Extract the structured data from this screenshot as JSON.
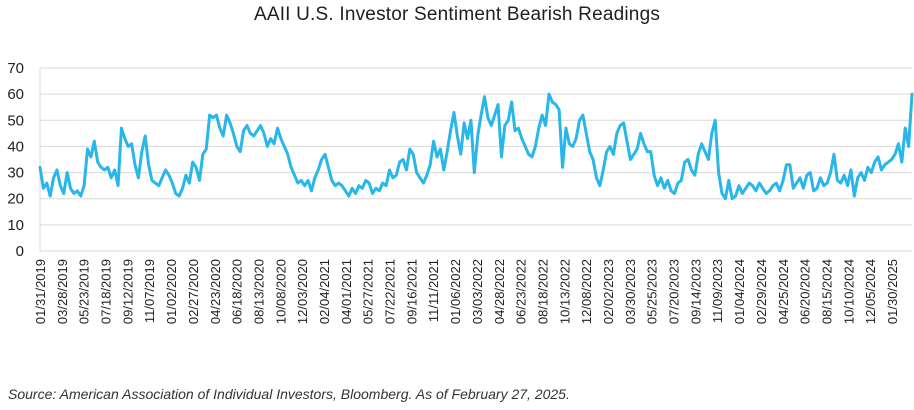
{
  "chart_data": {
    "type": "line",
    "title": "AAII U.S. Investor Sentiment Bearish Readings",
    "xlabel": "",
    "ylabel": "",
    "ylim": [
      0,
      70
    ],
    "yticks": [
      0,
      10,
      20,
      30,
      40,
      50,
      60,
      70
    ],
    "grid": "horizontal",
    "legend": "none",
    "line_color": "#29B6E8",
    "x_tick_labels": [
      "01/31/2019",
      "03/28/2019",
      "05/23/2019",
      "07/18/2019",
      "09/12/2019",
      "11/07/2019",
      "01/02/2020",
      "02/27/2020",
      "04/23/2020",
      "06/18/2020",
      "08/13/2020",
      "10/08/2020",
      "12/03/2020",
      "02/04/2021",
      "04/01/2021",
      "05/27/2021",
      "07/22/2021",
      "09/16/2021",
      "11/11/2021",
      "01/06/2022",
      "03/03/2022",
      "04/28/2022",
      "06/23/2022",
      "08/18/2022",
      "10/13/2022",
      "12/08/2022",
      "02/02/2023",
      "03/30/2023",
      "05/25/2023",
      "07/20/2023",
      "09/14/2023",
      "11/09/2023",
      "01/04/2024",
      "02/29/2024",
      "04/25/2024",
      "06/20/2024",
      "08/15/2024",
      "10/10/2024",
      "12/05/2024",
      "01/30/2025"
    ],
    "series": [
      {
        "values": [
          32,
          24,
          26,
          21,
          28,
          31,
          25,
          22,
          30,
          24,
          22,
          23,
          21,
          25,
          39,
          36,
          42,
          34,
          32,
          31,
          32,
          28,
          31,
          25,
          47,
          43,
          40,
          41,
          33,
          28,
          38,
          44,
          33,
          27,
          26,
          25,
          28,
          31,
          29,
          26,
          22,
          21,
          24,
          29,
          26,
          34,
          32,
          27,
          37,
          39,
          52,
          51,
          52,
          47,
          44,
          52,
          49,
          45,
          40,
          38,
          46,
          48,
          45,
          44,
          46,
          48,
          45,
          40,
          43,
          41,
          47,
          43,
          40,
          37,
          32,
          29,
          26,
          27,
          25,
          27,
          23,
          28,
          31,
          35,
          37,
          32,
          27,
          25,
          26,
          25,
          23,
          21,
          24,
          22,
          25,
          24,
          27,
          26,
          22,
          24,
          23,
          26,
          25,
          31,
          28,
          29,
          34,
          35,
          31,
          39,
          37,
          30,
          28,
          26,
          29,
          33,
          42,
          36,
          39,
          31,
          38,
          46,
          53,
          44,
          37,
          49,
          43,
          50,
          30,
          44,
          52,
          59,
          51,
          48,
          52,
          56,
          36,
          48,
          50,
          57,
          46,
          47,
          43,
          40,
          37,
          36,
          40,
          47,
          52,
          48,
          60,
          57,
          56,
          54,
          32,
          47,
          41,
          40,
          43,
          50,
          52,
          45,
          38,
          35,
          28,
          25,
          31,
          38,
          40,
          37,
          45,
          48,
          49,
          42,
          35,
          37,
          39,
          45,
          41,
          38,
          38,
          29,
          25,
          28,
          24,
          27,
          23,
          22,
          26,
          27,
          34,
          35,
          31,
          29,
          37,
          41,
          38,
          35,
          45,
          50,
          30,
          22,
          20,
          27,
          20,
          21,
          25,
          22,
          24,
          26,
          25,
          23,
          26,
          24,
          22,
          23,
          25,
          26,
          23,
          27,
          33,
          33,
          24,
          26,
          28,
          24,
          29,
          30,
          23,
          24,
          28,
          25,
          26,
          30,
          37,
          27,
          26,
          29,
          25,
          31,
          21,
          28,
          30,
          27,
          32,
          30,
          34,
          36,
          31,
          33,
          34,
          35,
          37,
          41,
          34,
          47,
          40,
          60
        ]
      }
    ],
    "source": "Source: American Association of Individual Investors, Bloomberg. As of February 27, 2025."
  }
}
